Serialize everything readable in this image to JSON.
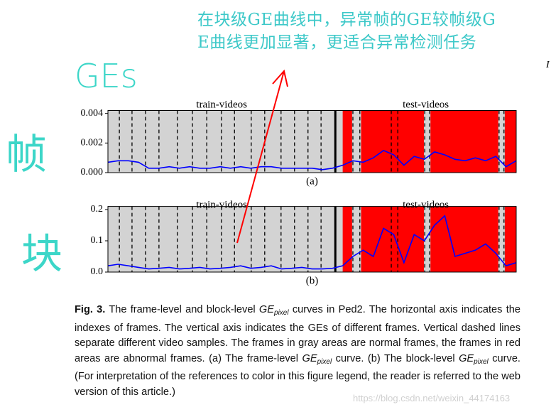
{
  "annotations": {
    "note_lines": [
      "在块级GE曲线中，异常帧的GE较帧级G",
      "E曲线更加显著，更适合异常检测任务"
    ],
    "ges_label": "GEs",
    "frame_label": "帧",
    "block_label": "块"
  },
  "corner_mark": "I",
  "chart_data": [
    {
      "type": "line",
      "region_labels": [
        "train-videos",
        "test-videos"
      ],
      "sublabel": "(a)",
      "xlim": [
        0,
        100
      ],
      "ylim": [
        0,
        0.0042
      ],
      "yticks": [
        {
          "value": 0,
          "label": "0.000"
        },
        {
          "value": 0.002,
          "label": "0.002"
        },
        {
          "value": 0.004,
          "label": "0.004"
        }
      ],
      "train_test_split": 55.7,
      "video_boundaries": [
        2.8,
        5.9,
        9.2,
        12.5,
        17.0,
        20.7,
        24.2,
        27.8,
        31.0,
        35.1,
        38.4,
        42.4,
        45.7,
        49.0,
        52.2,
        60.0,
        61.7,
        69.4,
        71.0,
        77.6,
        78.8,
        95.8,
        97.0
      ],
      "abnormal_spans": [
        [
          57.5,
          59.8
        ],
        [
          62,
          77.4
        ],
        [
          79,
          95.6
        ],
        [
          97.2,
          100
        ]
      ],
      "x": [
        0,
        2.5,
        5,
        7.5,
        10,
        12.5,
        15,
        17.5,
        20,
        22.5,
        25,
        27.5,
        30,
        32.5,
        35,
        37.5,
        40,
        42.5,
        45,
        47.5,
        50,
        52.5,
        55,
        57.5,
        60,
        62.5,
        65,
        67.5,
        70,
        72.5,
        75,
        77.5,
        80,
        82.5,
        85,
        87.5,
        90,
        92.5,
        95,
        97.5,
        100
      ],
      "color": "#0000ff",
      "values": [
        0.0007,
        0.0008,
        0.0008,
        0.0007,
        0.0003,
        0.0003,
        0.0004,
        0.0003,
        0.0004,
        0.0003,
        0.0003,
        0.0004,
        0.0003,
        0.0004,
        0.0003,
        0.0004,
        0.0004,
        0.0003,
        0.0003,
        0.0003,
        0.0003,
        0.0002,
        0.0003,
        0.0005,
        0.0008,
        0.0007,
        0.001,
        0.0015,
        0.0012,
        0.0005,
        0.0011,
        0.0009,
        0.0014,
        0.0012,
        0.0009,
        0.0008,
        0.001,
        0.0008,
        0.0011,
        0.0004,
        0.0008
      ]
    },
    {
      "type": "line",
      "region_labels": [
        "train-videos",
        "test-videos"
      ],
      "sublabel": "(b)",
      "xlim": [
        0,
        100
      ],
      "ylim": [
        0,
        0.21
      ],
      "yticks": [
        {
          "value": 0,
          "label": "0.0"
        },
        0.1,
        0.2
      ],
      "train_test_split": 55.7,
      "video_boundaries": [
        2.8,
        5.9,
        9.2,
        12.5,
        17.0,
        20.7,
        24.2,
        27.8,
        31.0,
        35.1,
        38.4,
        42.4,
        45.7,
        49.0,
        52.2,
        60.0,
        61.7,
        69.4,
        71.0,
        77.6,
        78.8,
        95.8,
        97.0
      ],
      "abnormal_spans": [
        [
          57.5,
          59.8
        ],
        [
          62,
          77.4
        ],
        [
          79,
          95.6
        ],
        [
          97.2,
          100
        ]
      ],
      "x": [
        0,
        2.5,
        5,
        7.5,
        10,
        12.5,
        15,
        17.5,
        20,
        22.5,
        25,
        27.5,
        30,
        32.5,
        35,
        37.5,
        40,
        42.5,
        45,
        47.5,
        50,
        52.5,
        55,
        57.5,
        60,
        62.5,
        65,
        67.5,
        70,
        72.5,
        75,
        77.5,
        80,
        82.5,
        85,
        87.5,
        90,
        92.5,
        95,
        97.5,
        100
      ],
      "color": "#0000ff",
      "values": [
        0.02,
        0.025,
        0.02,
        0.015,
        0.01,
        0.012,
        0.015,
        0.01,
        0.012,
        0.015,
        0.01,
        0.012,
        0.015,
        0.02,
        0.012,
        0.015,
        0.02,
        0.01,
        0.012,
        0.015,
        0.01,
        0.01,
        0.012,
        0.02,
        0.05,
        0.07,
        0.05,
        0.14,
        0.12,
        0.03,
        0.12,
        0.1,
        0.15,
        0.18,
        0.05,
        0.06,
        0.07,
        0.09,
        0.06,
        0.02,
        0.03
      ]
    }
  ],
  "caption": {
    "segments": [
      {
        "text": "Fig. 3.",
        "style": "bold"
      },
      {
        "text": "  The frame-level and block-level "
      },
      {
        "text": "GE",
        "style": "italic"
      },
      {
        "text": "pixel",
        "style": "sub"
      },
      {
        "text": " curves in Ped2. The horizontal axis indicates the indexes of frames. The vertical axis indicates the GEs of different frames. Vertical dashed lines separate different video samples. The frames in gray areas are normal frames, the frames in red areas are abnormal frames. (a) The frame-level "
      },
      {
        "text": "GE",
        "style": "italic"
      },
      {
        "text": "pixel",
        "style": "sub"
      },
      {
        "text": " curve. (b) The block-level "
      },
      {
        "text": "GE",
        "style": "italic"
      },
      {
        "text": "pixel",
        "style": "sub"
      },
      {
        "text": " curve. (For interpretation of the references to color in this figure legend, the reader is referred to the web version of this article.)"
      }
    ]
  },
  "watermark": "https://blog.csdn.net/weixin_44174163"
}
